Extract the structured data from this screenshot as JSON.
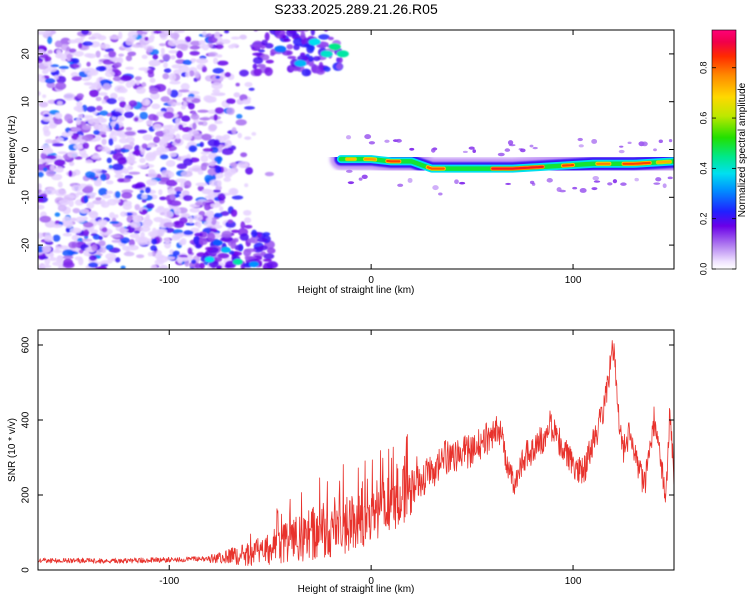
{
  "title": "S233.2025.289.21.26.R05",
  "chart_data": [
    {
      "type": "heatmap",
      "xlabel": "Height of straight line (km)",
      "ylabel": "Frequency (Hz)",
      "xlim": [
        -165,
        150
      ],
      "ylim": [
        -25,
        25
      ],
      "xticks": [
        -100,
        0,
        100
      ],
      "yticks": [
        -20,
        -10,
        0,
        10,
        20
      ],
      "colorbar": {
        "label": "Normalized spectral amplitude",
        "range": [
          0,
          0.95
        ],
        "ticks": [
          0.0,
          0.2,
          0.4,
          0.6,
          0.8
        ],
        "tick_labels": [
          "0.0",
          "0.2",
          "0.4",
          "0.6",
          "0.8"
        ]
      },
      "features": [
        {
          "name": "noise field",
          "x_range": [
            -165,
            -75
          ],
          "y_range": [
            -25,
            25
          ],
          "amplitude": "0.05-0.3"
        },
        {
          "name": "upper blob",
          "x_range": [
            -55,
            -15
          ],
          "y_range": [
            17,
            25
          ],
          "amplitude": "up to 0.5"
        },
        {
          "name": "lower blob",
          "x_range": [
            -85,
            -50
          ],
          "y_range": [
            -25,
            -18
          ],
          "amplitude": "up to 0.5"
        },
        {
          "name": "signal line",
          "x": [
            -15,
            0,
            10,
            20,
            30,
            50,
            70,
            90,
            110,
            130,
            150
          ],
          "y": [
            -2,
            -2,
            -2.5,
            -2.5,
            -4,
            -4,
            -4,
            -3.5,
            -3,
            -3,
            -2.5
          ],
          "amplitude": "0.8-0.9"
        }
      ]
    },
    {
      "type": "line",
      "xlabel": "Height of straight line (km)",
      "ylabel": "SNR (10 * v/v)",
      "xlim": [
        -165,
        150
      ],
      "ylim": [
        0,
        640
      ],
      "xticks": [
        -100,
        0,
        100
      ],
      "yticks": [
        0,
        200,
        400,
        600
      ],
      "color": "#e8322c",
      "envelope": {
        "x": [
          -165,
          -120,
          -80,
          -60,
          -50,
          -40,
          -30,
          -20,
          -10,
          0,
          10,
          20,
          30,
          35,
          40,
          50,
          55,
          60,
          63,
          65,
          68,
          72,
          75,
          80,
          85,
          88,
          92,
          95,
          100,
          105,
          110,
          115,
          118,
          120,
          122,
          125,
          128,
          132,
          135,
          138,
          140,
          143,
          146,
          148,
          150
        ],
        "y": [
          25,
          25,
          30,
          45,
          60,
          75,
          95,
          110,
          130,
          150,
          180,
          220,
          260,
          290,
          300,
          320,
          340,
          360,
          380,
          350,
          260,
          230,
          300,
          320,
          350,
          390,
          360,
          320,
          280,
          260,
          340,
          420,
          530,
          600,
          440,
          320,
          360,
          280,
          220,
          310,
          400,
          300,
          180,
          430,
          230
        ]
      }
    }
  ]
}
